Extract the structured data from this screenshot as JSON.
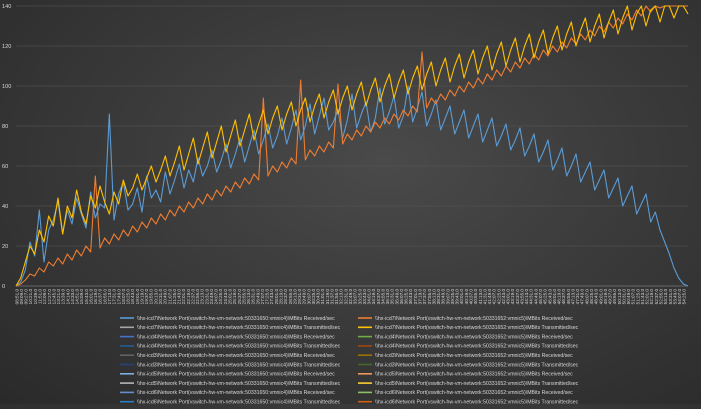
{
  "chart_data": {
    "type": "line",
    "title": "",
    "xlabel": "",
    "ylabel": "",
    "ylim": [
      0,
      140
    ],
    "yticks": [
      0,
      20,
      40,
      60,
      80,
      100,
      120,
      140
    ],
    "grid": true,
    "legend_position": "bottom",
    "background": "#3b3b3b",
    "x_tick_labels": [
      "08:51.0",
      "09:09.0",
      "09:27.0",
      "10:21.0",
      "10:39.0",
      "11:51.0",
      "12:09.0",
      "12:27.0",
      "12:45.0",
      "13:21.0",
      "13:39.0",
      "14:14.0",
      "14:33.0",
      "14:51.0",
      "15:09.0",
      "15:43.0",
      "16:01.0",
      "16:19.0",
      "16:37.0",
      "16:55.0",
      "17:13.0",
      "17:31.0",
      "17:49.0",
      "18:07.0",
      "18:25.0",
      "18:43.0",
      "19:01.0",
      "19:19.0",
      "19:37.0",
      "19:55.0",
      "20:13.0",
      "20:31.0",
      "20:49.0",
      "21:07.0",
      "21:25.0",
      "21:43.0",
      "22:01.0",
      "22:19.0",
      "22:37.0",
      "22:55.0",
      "23:13.0",
      "23:31.0",
      "23:49.0",
      "24:07.0",
      "24:25.0",
      "24:43.0",
      "25:01.0",
      "25:19.0",
      "25:37.0",
      "25:55.0",
      "26:13.0",
      "26:31.0",
      "26:49.0",
      "27:07.0",
      "27:25.0",
      "27:43.0",
      "28:01.0",
      "28:19.0",
      "28:37.0",
      "28:55.0",
      "29:13.0",
      "29:31.0",
      "29:49.0",
      "30:07.0",
      "30:25.0",
      "30:43.0",
      "31:01.0",
      "31:19.0",
      "31:37.0",
      "31:55.0",
      "32:13.0",
      "32:31.0",
      "32:49.0",
      "33:07.0",
      "33:25.0",
      "33:43.0",
      "34:01.0",
      "34:19.0",
      "34:37.0",
      "34:55.0",
      "35:13.0",
      "35:31.0",
      "35:49.0",
      "36:07.0",
      "36:25.0",
      "36:43.0",
      "37:01.0",
      "37:19.0",
      "37:37.0",
      "37:55.0",
      "38:13.0",
      "38:31.0",
      "38:49.0",
      "39:07.0",
      "39:25.0",
      "39:43.0",
      "40:01.0",
      "40:19.0",
      "40:37.0",
      "40:55.0",
      "41:13.0",
      "41:31.0",
      "41:49.0",
      "42:07.0",
      "42:25.0",
      "42:43.0",
      "43:01.0",
      "43:19.0",
      "43:37.0",
      "43:55.0",
      "44:13.0",
      "44:31.0",
      "44:49.0",
      "45:07.0",
      "45:25.0",
      "45:43.0",
      "46:01.0",
      "46:19.0",
      "46:37.0",
      "46:55.0",
      "47:13.0",
      "47:31.0",
      "47:49.0",
      "48:07.0",
      "48:25.0",
      "48:43.0",
      "49:01.0",
      "49:19.0",
      "49:37.0",
      "49:55.0",
      "50:13.0",
      "50:31.0",
      "50:49.0",
      "51:07.0",
      "51:25.0",
      "51:43.0",
      "52:01.0",
      "52:19.0",
      "52:37.0",
      "52:55.0",
      "53:13.0",
      "53:31.0",
      "53:49.0",
      "54:07.0",
      "54:25.0"
    ],
    "legend": [
      {
        "label": "\\\\hx-icd7\\Network Port(vswitch-hw-vm-network:50331650:vmnic4)\\MBits Received/sec",
        "color": "#5b9bd5"
      },
      {
        "label": "\\\\hx-icd7\\Network Port(vswitch-hw-vm-network:50331652:vmnic5)\\MBits Received/sec",
        "color": "#ed7d31"
      },
      {
        "label": "\\\\hx-icd7\\Network Port(vswitch-hw-vm-network:50331650:vmnic4)\\MBits Transmitted/sec",
        "color": "#a5a5a5"
      },
      {
        "label": "\\\\hx-icd7\\Network Port(vswitch-hw-vm-network:50331652:vmnic5)\\MBits Transmitted/sec",
        "color": "#ffc000"
      },
      {
        "label": "\\\\hx-icd4\\Network Port(vswitch-hw-vm-network:50331650:vmnic4)\\MBits Received/sec",
        "color": "#4472c4"
      },
      {
        "label": "\\\\hx-icd4\\Network Port(vswitch-hw-vm-network:50331652:vmnic5)\\MBits Received/sec",
        "color": "#70ad47"
      },
      {
        "label": "\\\\hx-icd4\\Network Port(vswitch-hw-vm-network:50331650:vmnic4)\\MBits Transmitted/sec",
        "color": "#255e91"
      },
      {
        "label": "\\\\hx-icd4\\Network Port(vswitch-hw-vm-network:50331652:vmnic5)\\MBits Transmitted/sec",
        "color": "#9e480e"
      },
      {
        "label": "\\\\hx-icd3\\Network Port(vswitch-hw-vm-network:50331650:vmnic4)\\MBits Received/sec",
        "color": "#636363"
      },
      {
        "label": "\\\\hx-icd3\\Network Port(vswitch-hw-vm-network:50331652:vmnic5)\\MBits Received/sec",
        "color": "#997300"
      },
      {
        "label": "\\\\hx-icd3\\Network Port(vswitch-hw-vm-network:50331650:vmnic4)\\MBits Transmitted/sec",
        "color": "#264478"
      },
      {
        "label": "\\\\hx-icd3\\Network Port(vswitch-hw-vm-network:50331652:vmnic5)\\MBits Transmitted/sec",
        "color": "#43682b"
      },
      {
        "label": "\\\\hx-icd5\\Network Port(vswitch-hw-vm-network:50331650:vmnic4)\\MBits Received/sec",
        "color": "#7cafdd"
      },
      {
        "label": "\\\\hx-icd5\\Network Port(vswitch-hw-vm-network:50331652:vmnic5)\\MBits Received/sec",
        "color": "#f1975a"
      },
      {
        "label": "\\\\hx-icd5\\Network Port(vswitch-hw-vm-network:50331650:vmnic4)\\MBits Transmitted/sec",
        "color": "#b7b7b7"
      },
      {
        "label": "\\\\hx-icd5\\Network Port(vswitch-hw-vm-network:50331652:vmnic5)\\MBits Transmitted/sec",
        "color": "#ffcd33"
      },
      {
        "label": "\\\\hx-icd6\\Network Port(vswitch-hw-vm-network:50331650:vmnic4)\\MBits Received/sec",
        "color": "#698ed0"
      },
      {
        "label": "\\\\hx-icd6\\Network Port(vswitch-hw-vm-network:50331652:vmnic5)\\MBits Received/sec",
        "color": "#8cc168"
      },
      {
        "label": "\\\\hx-icd6\\Network Port(vswitch-hw-vm-network:50331650:vmnic4)\\MBits Transmitted/sec",
        "color": "#327dc2"
      },
      {
        "label": "\\\\hx-icd6\\Network Port(vswitch-hw-vm-network:50331652:vmnic5)\\MBits Transmitted/sec",
        "color": "#d26012"
      },
      {
        "label": "\\\\hx-icd3\\Network Port(vswitch-hw-vm-network:50331650:vmnic4)\\MBits Transmitted/sec",
        "color": "#ffc000"
      },
      {
        "label": "\\\\hx-icd3\\Network Port(vswitch-hw-vm-network:50331650:vmnic4)\\MBits Received/sec",
        "color": "#5b9bd5"
      },
      {
        "label": "\\\\hx-icd3\\Network Port(vswitch-hw-vm-network:50331652:vmnic5)\\MBits Transmitted/sec",
        "color": "#a9d18e"
      },
      {
        "label": "\\\\hx-icd3\\Network Port(vswitch-hw-vm-network:50331652:vmnic5)\\MBits Received/sec",
        "color": "#4472c4"
      }
    ],
    "series": [
      {
        "name": "\\\\hx-icd7\\Network Port(vswitch-hw-vm-network:50331650:vmnic4)\\MBits Received/sec",
        "color": "#5b9bd5",
        "values": [
          0,
          2,
          8,
          22,
          15,
          38,
          12,
          28,
          33,
          42,
          26,
          38,
          31,
          44,
          36,
          29,
          47,
          34,
          41,
          39,
          86,
          33,
          46,
          52,
          38,
          41,
          49,
          37,
          55,
          44,
          48,
          42,
          57,
          46,
          53,
          61,
          49,
          58,
          52,
          64,
          55,
          60,
          68,
          57,
          63,
          71,
          59,
          66,
          74,
          62,
          70,
          78,
          66,
          73,
          81,
          69,
          75,
          84,
          71,
          79,
          88,
          73,
          80,
          91,
          76,
          85,
          94,
          78,
          82,
          88,
          74,
          83,
          96,
          79,
          86,
          92,
          77,
          84,
          99,
          81,
          87,
          95,
          79,
          85,
          100,
          82,
          89,
          97,
          80,
          86,
          93,
          78,
          84,
          90,
          76,
          82,
          88,
          74,
          80,
          86,
          72,
          78,
          84,
          70,
          75,
          81,
          68,
          73,
          79,
          65,
          70,
          76,
          62,
          67,
          73,
          58,
          63,
          69,
          55,
          60,
          66,
          52,
          57,
          62,
          48,
          53,
          58,
          44,
          49,
          54,
          40,
          45,
          50,
          36,
          41,
          46,
          32,
          37,
          28,
          22,
          16,
          9,
          4,
          1,
          0
        ]
      },
      {
        "name": "\\\\hx-icd7\\Network Port(vswitch-hw-vm-network:50331652:vmnic5)\\MBits Received/sec",
        "color": "#ed7d31",
        "values": [
          0,
          1,
          3,
          6,
          5,
          9,
          7,
          12,
          10,
          14,
          11,
          16,
          13,
          18,
          15,
          20,
          17,
          55,
          19,
          24,
          21,
          26,
          23,
          28,
          25,
          30,
          27,
          32,
          29,
          34,
          31,
          36,
          33,
          38,
          35,
          40,
          37,
          42,
          39,
          44,
          41,
          46,
          43,
          48,
          45,
          50,
          47,
          52,
          49,
          54,
          51,
          56,
          53,
          94,
          55,
          60,
          57,
          62,
          59,
          64,
          61,
          103,
          63,
          68,
          65,
          70,
          67,
          72,
          69,
          101,
          71,
          76,
          73,
          78,
          75,
          80,
          77,
          82,
          79,
          84,
          81,
          86,
          83,
          88,
          85,
          90,
          87,
          117,
          89,
          94,
          91,
          96,
          93,
          98,
          95,
          100,
          97,
          102,
          99,
          104,
          101,
          106,
          103,
          108,
          105,
          110,
          107,
          112,
          109,
          114,
          111,
          116,
          113,
          118,
          115,
          120,
          117,
          122,
          119,
          124,
          121,
          126,
          123,
          128,
          125,
          130,
          127,
          132,
          129,
          134,
          131,
          136,
          133,
          138,
          135,
          140,
          137,
          142,
          139,
          144,
          141,
          146,
          143,
          148,
          145
        ]
      },
      {
        "name": "\\\\hx-icd7\\Network Port(vswitch-hw-vm-network:50331652:vmnic5)\\MBits Transmitted/sec",
        "color": "#ffc000",
        "values": [
          0,
          4,
          12,
          20,
          16,
          28,
          22,
          35,
          30,
          44,
          26,
          40,
          34,
          48,
          37,
          31,
          45,
          39,
          50,
          42,
          36,
          47,
          41,
          53,
          45,
          49,
          56,
          48,
          54,
          60,
          52,
          58,
          65,
          55,
          62,
          70,
          58,
          66,
          74,
          61,
          69,
          77,
          64,
          72,
          80,
          67,
          75,
          83,
          70,
          78,
          86,
          73,
          81,
          88,
          76,
          84,
          90,
          78,
          86,
          92,
          80,
          88,
          94,
          82,
          90,
          96,
          84,
          92,
          98,
          86,
          94,
          100,
          88,
          96,
          102,
          90,
          98,
          104,
          92,
          100,
          106,
          94,
          102,
          108,
          96,
          104,
          110,
          98,
          106,
          112,
          100,
          108,
          114,
          102,
          110,
          116,
          104,
          112,
          118,
          106,
          114,
          120,
          108,
          116,
          122,
          110,
          118,
          124,
          112,
          120,
          126,
          114,
          122,
          128,
          116,
          124,
          130,
          118,
          126,
          132,
          120,
          128,
          134,
          122,
          130,
          136,
          124,
          132,
          138,
          126,
          134,
          140,
          128,
          136,
          142,
          130,
          138,
          144,
          132,
          140,
          146,
          134,
          142,
          148,
          136
        ]
      }
    ]
  }
}
